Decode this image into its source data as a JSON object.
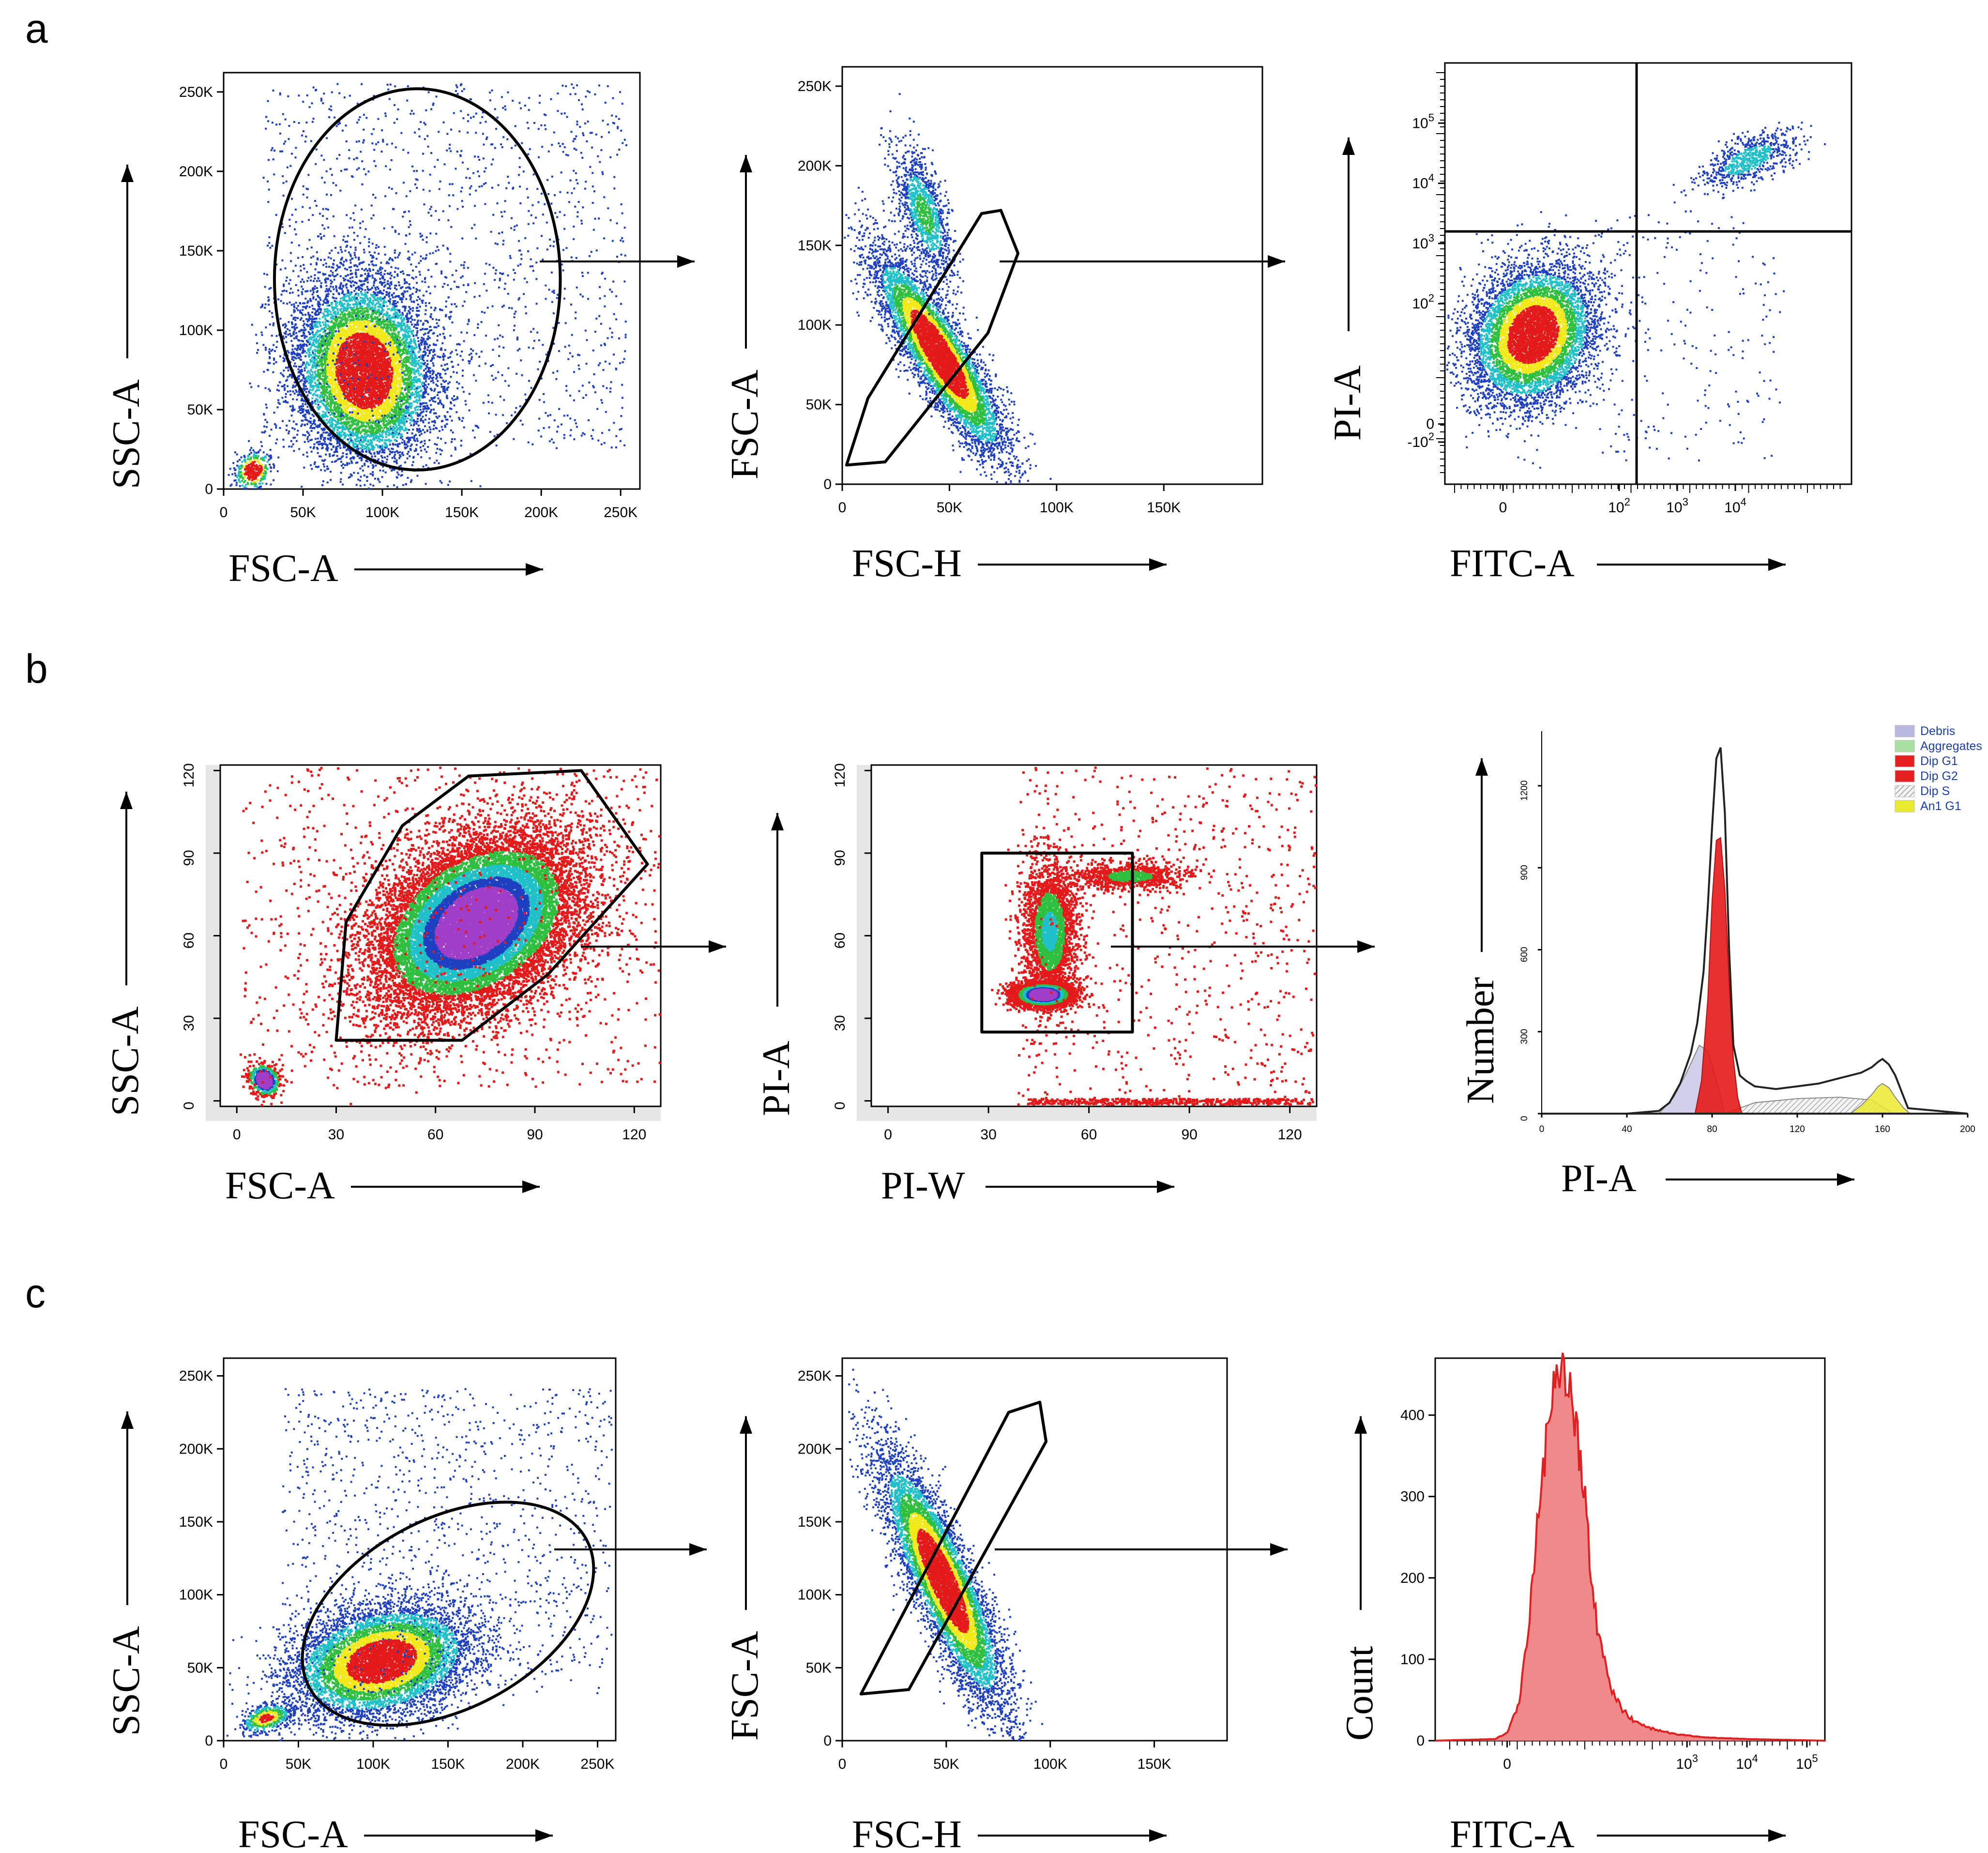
{
  "panel_letters": {
    "a": "a",
    "b": "b",
    "c": "c"
  },
  "palette": {
    "density_blue": "#1e40c0",
    "density_cyan": "#1fc0c8",
    "density_green": "#2fbf3f",
    "density_yellow": "#f2e81a",
    "density_red": "#e41a1a",
    "density_purple": "#a03ec8",
    "histogram_red": "#e02020",
    "histogram_fill": "#f08a8a"
  },
  "chart_data": [
    {
      "id": "a1",
      "type": "scatter",
      "title": "",
      "xlabel": "FSC-A",
      "ylabel": "SSC-A",
      "xlim": [
        0,
        262144
      ],
      "ylim": [
        0,
        262144
      ],
      "x_ticks": [
        {
          "v": 0,
          "label": "0"
        },
        {
          "v": 50000,
          "label": "50K"
        },
        {
          "v": 100000,
          "label": "100K"
        },
        {
          "v": 150000,
          "label": "150K"
        },
        {
          "v": 200000,
          "label": "200K"
        },
        {
          "v": 250000,
          "label": "250K"
        }
      ],
      "y_ticks": [
        {
          "v": 0,
          "label": "0"
        },
        {
          "v": 50000,
          "label": "50K"
        },
        {
          "v": 100000,
          "label": "100K"
        },
        {
          "v": 150000,
          "label": "150K"
        },
        {
          "v": 200000,
          "label": "200K"
        },
        {
          "v": 250000,
          "label": "250K"
        }
      ],
      "population_center": [
        88000,
        75000
      ],
      "gate": {
        "shape": "ellipse",
        "center": [
          122000,
          132000
        ],
        "radii": [
          90000,
          120000
        ]
      }
    },
    {
      "id": "a2",
      "type": "scatter",
      "title": "",
      "xlabel": "FSC-H",
      "ylabel": "FSC-A",
      "xlim": [
        0,
        196000
      ],
      "ylim": [
        0,
        262144
      ],
      "x_ticks": [
        {
          "v": 0,
          "label": "0"
        },
        {
          "v": 50000,
          "label": "50K"
        },
        {
          "v": 100000,
          "label": "100K"
        },
        {
          "v": 150000,
          "label": "150K"
        }
      ],
      "y_ticks": [
        {
          "v": 0,
          "label": "0"
        },
        {
          "v": 50000,
          "label": "50K"
        },
        {
          "v": 100000,
          "label": "100K"
        },
        {
          "v": 150000,
          "label": "150K"
        },
        {
          "v": 200000,
          "label": "200K"
        },
        {
          "v": 250000,
          "label": "250K"
        }
      ],
      "population_center": [
        45000,
        82000
      ],
      "gate": {
        "shape": "polygon",
        "points": [
          [
            2000,
            12000
          ],
          [
            12000,
            54000
          ],
          [
            65000,
            170000
          ],
          [
            74000,
            172000
          ],
          [
            82000,
            145000
          ],
          [
            68000,
            95000
          ],
          [
            20000,
            14000
          ]
        ]
      }
    },
    {
      "id": "a3",
      "type": "scatter",
      "title": "",
      "xlabel": "FITC-A",
      "ylabel": "PI-A",
      "xlim": [
        -1,
        6
      ],
      "ylim": [
        -1,
        6
      ],
      "x_ticks": [
        {
          "v": 0,
          "label": "0"
        },
        {
          "v": 2,
          "base": "10",
          "exp": "2"
        },
        {
          "v": 3,
          "base": "10",
          "exp": "3"
        },
        {
          "v": 4,
          "base": "10",
          "exp": "4"
        }
      ],
      "y_ticks": [
        {
          "v": -0.3,
          "prefix": "-",
          "base": "10",
          "exp": "2"
        },
        {
          "v": 0,
          "label": "0"
        },
        {
          "v": 2,
          "base": "10",
          "exp": "2"
        },
        {
          "v": 3,
          "base": "10",
          "exp": "3"
        },
        {
          "v": 4,
          "base": "10",
          "exp": "4"
        },
        {
          "v": 5,
          "base": "10",
          "exp": "5"
        }
      ],
      "population_center": [
        0.5,
        1.5
      ],
      "quadrant_lines": {
        "x": 2.3,
        "y": 3.2
      }
    },
    {
      "id": "b1",
      "type": "heatmap",
      "title": "",
      "xlabel": "FSC-A",
      "ylabel": "SSC-A",
      "xlim": [
        -5,
        128
      ],
      "ylim": [
        -2,
        122
      ],
      "x_ticks": [
        {
          "v": 0,
          "label": "0"
        },
        {
          "v": 30,
          "label": "30"
        },
        {
          "v": 60,
          "label": "60"
        },
        {
          "v": 90,
          "label": "90"
        },
        {
          "v": 120,
          "label": "120"
        }
      ],
      "y_ticks": [
        {
          "v": 0,
          "label": "0"
        },
        {
          "v": 30,
          "label": "30"
        },
        {
          "v": 60,
          "label": "60"
        },
        {
          "v": 90,
          "label": "90"
        },
        {
          "v": 120,
          "label": "120"
        }
      ],
      "population_center": [
        72,
        65
      ],
      "gate": {
        "shape": "polygon",
        "points": [
          [
            30,
            22
          ],
          [
            33,
            65
          ],
          [
            50,
            100
          ],
          [
            70,
            118
          ],
          [
            104,
            120
          ],
          [
            124,
            86
          ],
          [
            94,
            46
          ],
          [
            68,
            22
          ]
        ]
      }
    },
    {
      "id": "b2",
      "type": "heatmap",
      "title": "",
      "xlabel": "PI-W",
      "ylabel": "PI-A",
      "xlim": [
        -5,
        128
      ],
      "ylim": [
        -2,
        122
      ],
      "x_ticks": [
        {
          "v": 0,
          "label": "0"
        },
        {
          "v": 30,
          "label": "30"
        },
        {
          "v": 60,
          "label": "60"
        },
        {
          "v": 90,
          "label": "90"
        },
        {
          "v": 120,
          "label": "120"
        }
      ],
      "y_ticks": [
        {
          "v": 0,
          "label": "0"
        },
        {
          "v": 30,
          "label": "30"
        },
        {
          "v": 60,
          "label": "60"
        },
        {
          "v": 90,
          "label": "90"
        },
        {
          "v": 120,
          "label": "120"
        }
      ],
      "population_center": [
        46,
        39
      ],
      "gate": {
        "shape": "rectangle",
        "points": [
          [
            28,
            25
          ],
          [
            28,
            90
          ],
          [
            73,
            90
          ],
          [
            73,
            25
          ]
        ]
      }
    },
    {
      "id": "b3",
      "type": "area",
      "title": "",
      "xlabel": "PI-A",
      "ylabel": "Number",
      "xlim": [
        0,
        200
      ],
      "ylim": [
        0,
        1400
      ],
      "x_ticks": [
        {
          "v": 0,
          "label": "0"
        },
        {
          "v": 40,
          "label": "40"
        },
        {
          "v": 80,
          "label": "80"
        },
        {
          "v": 120,
          "label": "120"
        },
        {
          "v": 160,
          "label": "160"
        },
        {
          "v": 200,
          "label": "200"
        }
      ],
      "y_ticks": [
        {
          "v": 0,
          "label": "0"
        },
        {
          "v": 300,
          "label": "300"
        },
        {
          "v": 600,
          "label": "600"
        },
        {
          "v": 900,
          "label": "900"
        },
        {
          "v": 1200,
          "label": "1200"
        }
      ],
      "legend": [
        {
          "label": "Debris",
          "color": "#b8b8e0"
        },
        {
          "label": "Aggregates",
          "color": "#a8e0a0"
        },
        {
          "label": "Dip G1",
          "color": "#e62020"
        },
        {
          "label": "Dip G2",
          "color": "#e62020"
        },
        {
          "label": "Dip S",
          "color": "#e8e8e8"
        },
        {
          "label": "An1 G1",
          "color": "#eaea30"
        }
      ],
      "legend_position": "top-right",
      "series": [
        {
          "name": "Total",
          "x": [
            0,
            40,
            55,
            60,
            65,
            70,
            73,
            76,
            78,
            80,
            82,
            84,
            86,
            88,
            90,
            93,
            96,
            100,
            110,
            120,
            130,
            140,
            150,
            155,
            158,
            160,
            163,
            166,
            170,
            172,
            200
          ],
          "values": [
            0,
            0,
            10,
            40,
            110,
            220,
            330,
            520,
            760,
            1050,
            1300,
            1340,
            1100,
            600,
            250,
            140,
            120,
            100,
            90,
            100,
            110,
            130,
            150,
            170,
            190,
            200,
            180,
            140,
            60,
            20,
            0
          ]
        },
        {
          "name": "Dip G1",
          "x": [
            72,
            75,
            78,
            80,
            82,
            84,
            86,
            88,
            90,
            92,
            94
          ],
          "values": [
            0,
            120,
            420,
            780,
            1000,
            1010,
            820,
            480,
            200,
            60,
            0
          ]
        },
        {
          "name": "Debris",
          "x": [
            55,
            62,
            68,
            74,
            78,
            82,
            86
          ],
          "values": [
            0,
            60,
            150,
            250,
            230,
            120,
            0
          ]
        },
        {
          "name": "Dip S",
          "x": [
            86,
            100,
            120,
            140,
            155,
            165
          ],
          "values": [
            0,
            40,
            55,
            60,
            50,
            0
          ]
        },
        {
          "name": "An1 G1",
          "x": [
            145,
            150,
            155,
            158,
            160,
            163,
            166,
            170,
            173
          ],
          "values": [
            0,
            30,
            70,
            100,
            110,
            95,
            60,
            20,
            0
          ]
        }
      ]
    },
    {
      "id": "c1",
      "type": "scatter",
      "title": "",
      "xlabel": "FSC-A",
      "ylabel": "SSC-A",
      "xlim": [
        0,
        262144
      ],
      "ylim": [
        0,
        262144
      ],
      "x_ticks": [
        {
          "v": 0,
          "label": "0"
        },
        {
          "v": 50000,
          "label": "50K"
        },
        {
          "v": 100000,
          "label": "100K"
        },
        {
          "v": 150000,
          "label": "150K"
        },
        {
          "v": 200000,
          "label": "200K"
        },
        {
          "v": 250000,
          "label": "250K"
        }
      ],
      "y_ticks": [
        {
          "v": 0,
          "label": "0"
        },
        {
          "v": 50000,
          "label": "50K"
        },
        {
          "v": 100000,
          "label": "100K"
        },
        {
          "v": 150000,
          "label": "150K"
        },
        {
          "v": 200000,
          "label": "200K"
        },
        {
          "v": 250000,
          "label": "250K"
        }
      ],
      "population_center": [
        105000,
        55000
      ],
      "gate": {
        "shape": "ellipse",
        "center": [
          150000,
          87000
        ],
        "radii": [
          105000,
          65000
        ],
        "rotation_deg": -28
      }
    },
    {
      "id": "c2",
      "type": "scatter",
      "title": "",
      "xlabel": "FSC-H",
      "ylabel": "FSC-A",
      "xlim": [
        0,
        185000
      ],
      "ylim": [
        0,
        262144
      ],
      "x_ticks": [
        {
          "v": 0,
          "label": "0"
        },
        {
          "v": 50000,
          "label": "50K"
        },
        {
          "v": 100000,
          "label": "100K"
        },
        {
          "v": 150000,
          "label": "150K"
        }
      ],
      "y_ticks": [
        {
          "v": 0,
          "label": "0"
        },
        {
          "v": 50000,
          "label": "50K"
        },
        {
          "v": 100000,
          "label": "100K"
        },
        {
          "v": 150000,
          "label": "150K"
        },
        {
          "v": 200000,
          "label": "200K"
        },
        {
          "v": 250000,
          "label": "250K"
        }
      ],
      "population_center": [
        48000,
        110000
      ],
      "gate": {
        "shape": "polygon",
        "points": [
          [
            9000,
            32000
          ],
          [
            80000,
            225000
          ],
          [
            95000,
            232000
          ],
          [
            98000,
            205000
          ],
          [
            32000,
            35000
          ]
        ]
      }
    },
    {
      "id": "c3",
      "type": "area",
      "title": "",
      "xlabel": "FITC-A",
      "ylabel": "Count",
      "xlim": [
        -1.2,
        5.3
      ],
      "ylim": [
        0,
        470
      ],
      "x_ticks": [
        {
          "v": 0,
          "label": "0"
        },
        {
          "v": 3,
          "base": "10",
          "exp": "3"
        },
        {
          "v": 4,
          "base": "10",
          "exp": "4"
        },
        {
          "v": 5,
          "base": "10",
          "exp": "5"
        }
      ],
      "y_ticks": [
        {
          "v": 0,
          "label": "0"
        },
        {
          "v": 100,
          "label": "100"
        },
        {
          "v": 200,
          "label": "200"
        },
        {
          "v": 300,
          "label": "300"
        },
        {
          "v": 400,
          "label": "400"
        }
      ],
      "series": [
        {
          "name": "Count",
          "x": [
            -1.2,
            -0.2,
            0.0,
            0.2,
            0.35,
            0.5,
            0.65,
            0.78,
            0.9,
            1.0,
            1.1,
            1.22,
            1.35,
            1.5,
            1.7,
            1.9,
            2.1,
            2.4,
            2.8,
            3.3,
            4.0,
            5.3
          ],
          "values": [
            0,
            2,
            10,
            45,
            140,
            260,
            360,
            420,
            450,
            440,
            420,
            350,
            250,
            140,
            70,
            40,
            25,
            15,
            8,
            4,
            2,
            0
          ]
        }
      ]
    }
  ]
}
